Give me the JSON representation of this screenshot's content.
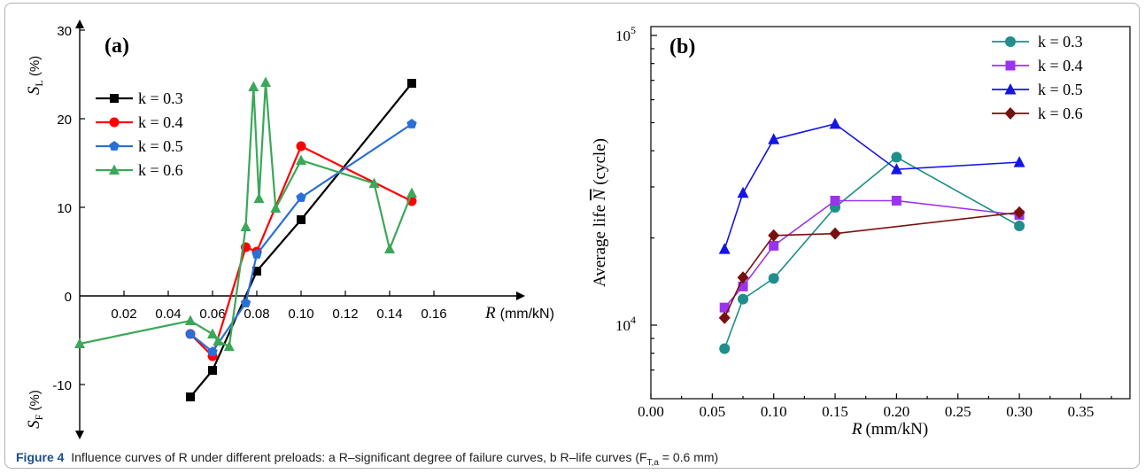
{
  "caption": {
    "figure_label": "Figure 4",
    "text": "Influence curves of R under different preloads: a R–significant degree of failure curves, b R–life curves (F",
    "sub": "T,a",
    "tail": " = 0.6 mm)"
  },
  "chart_data": [
    {
      "type": "line",
      "panel_label": "(a)",
      "xlabel_var": "R",
      "xlabel_unit": "(mm/kN)",
      "ylabel_top": "S_L (%)",
      "ylabel_bottom": "S_F (%)",
      "x_ticks": [
        "0.02",
        "0.04",
        "0.06",
        "0.08",
        "0.10",
        "0.12",
        "0.14",
        "0.16"
      ],
      "y_ticks": [
        "30",
        "20",
        "10",
        "0",
        "-10"
      ],
      "xlim": [
        0,
        0.18
      ],
      "ylim": [
        -15,
        31
      ],
      "legend_position": "left",
      "series": [
        {
          "name": "k = 0.3",
          "color": "#000000",
          "marker": "square",
          "x": [
            0.05,
            0.06,
            0.08,
            0.1,
            0.15
          ],
          "y": [
            -11.4,
            -8.4,
            2.8,
            8.6,
            24.0
          ]
        },
        {
          "name": "k = 0.4",
          "color": "#ff0000",
          "marker": "circle",
          "x": [
            0.05,
            0.06,
            0.075,
            0.08,
            0.1,
            0.15
          ],
          "y": [
            -4.3,
            -6.8,
            5.5,
            5.0,
            16.9,
            10.7
          ]
        },
        {
          "name": "k = 0.5",
          "color": "#2a6fd6",
          "marker": "pentagon",
          "x": [
            0.05,
            0.06,
            0.075,
            0.08,
            0.1,
            0.15
          ],
          "y": [
            -4.3,
            -6.3,
            -0.8,
            4.7,
            11.1,
            19.4
          ]
        },
        {
          "name": "k = 0.6",
          "color": "#3aa858",
          "marker": "triangle",
          "x": [
            0.0,
            0.05,
            0.06,
            0.0625,
            0.0675,
            0.075,
            0.0785,
            0.081,
            0.084,
            0.0885,
            0.1,
            0.133,
            0.14,
            0.15
          ],
          "y": [
            -5.4,
            -2.8,
            -4.3,
            -5.1,
            -5.7,
            7.8,
            23.6,
            11.0,
            24.1,
            9.9,
            15.3,
            12.7,
            5.3,
            11.6
          ]
        }
      ]
    },
    {
      "type": "line",
      "panel_label": "(b)",
      "xlabel_var": "R",
      "xlabel_unit": "(mm/kN)",
      "ylabel_prefix": "Average life ",
      "ylabel_var": "N",
      "ylabel_suffix": " (cycle)",
      "x_ticks": [
        "0.00",
        "0.05",
        "0.10",
        "0.15",
        "0.20",
        "0.25",
        "0.30",
        "0.35"
      ],
      "y_scale": "log",
      "y_tick_base": "10",
      "y_tick_exps": [
        "4",
        "5"
      ],
      "xlim": [
        0,
        0.39
      ],
      "ylim": [
        6500,
        100000
      ],
      "legend_position": "top-right",
      "series": [
        {
          "name": "k = 0.3",
          "color": "#1e8f8a",
          "marker": "circle",
          "x": [
            0.06,
            0.075,
            0.1,
            0.15,
            0.2,
            0.3
          ],
          "y": [
            8300,
            12300,
            14500,
            25500,
            38000,
            22000
          ]
        },
        {
          "name": "k = 0.4",
          "color": "#9a33ee",
          "marker": "square",
          "x": [
            0.06,
            0.075,
            0.1,
            0.15,
            0.2,
            0.3
          ],
          "y": [
            11500,
            13600,
            18800,
            26900,
            26900,
            24000
          ]
        },
        {
          "name": "k = 0.5",
          "color": "#1414e6",
          "marker": "triangle",
          "x": [
            0.06,
            0.075,
            0.1,
            0.15,
            0.2,
            0.3
          ],
          "y": [
            18300,
            28600,
            43800,
            49500,
            34500,
            36500
          ]
        },
        {
          "name": "k = 0.6",
          "color": "#7a0f0f",
          "marker": "diamond",
          "x": [
            0.06,
            0.075,
            0.1,
            0.15,
            0.3
          ],
          "y": [
            10600,
            14600,
            20400,
            20700,
            24500
          ]
        }
      ]
    }
  ]
}
